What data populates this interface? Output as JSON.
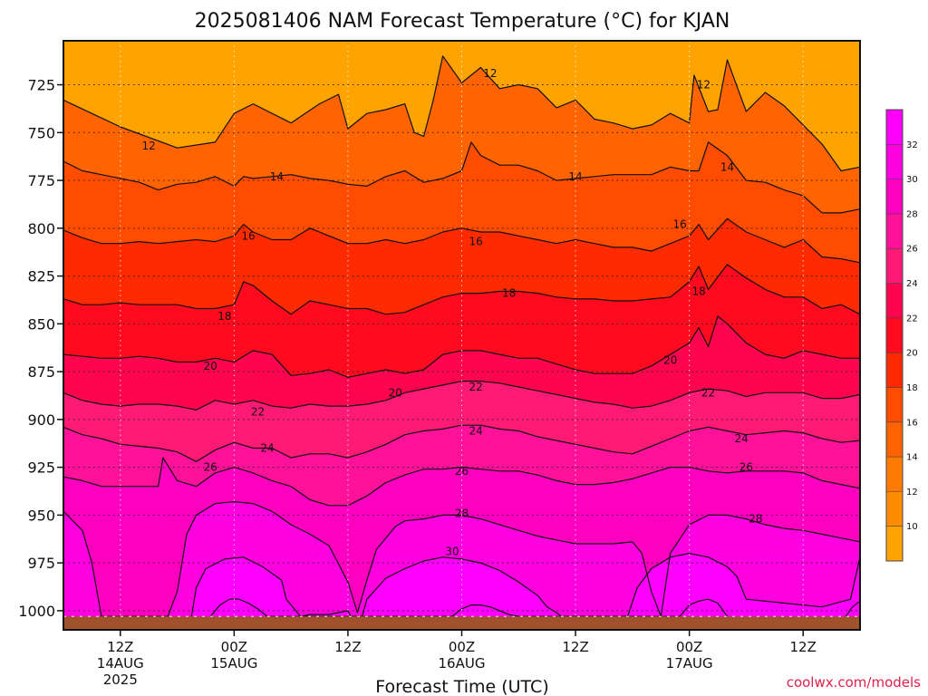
{
  "chart_data": {
    "type": "heatmap",
    "title": "2025081406 NAM Forecast Temperature (°C) for KJAN",
    "xlabel": "Forecast Time (UTC)",
    "ylabel": "",
    "yaxis": {
      "ticks": [
        725,
        750,
        775,
        800,
        825,
        850,
        875,
        900,
        925,
        950,
        975,
        1000
      ],
      "ylim": [
        1010,
        702
      ],
      "inverted": true,
      "grid": "dotted"
    },
    "xaxis": {
      "xlim": [
        0,
        84
      ],
      "ticks": [
        {
          "x": 6,
          "label": "12Z",
          "sub": "14AUG",
          "sub2": "2025"
        },
        {
          "x": 18,
          "label": "00Z",
          "sub": "15AUG",
          "sub2": ""
        },
        {
          "x": 30,
          "label": "12Z",
          "sub": "",
          "sub2": ""
        },
        {
          "x": 42,
          "label": "00Z",
          "sub": "16AUG",
          "sub2": ""
        },
        {
          "x": 54,
          "label": "12Z",
          "sub": "",
          "sub2": ""
        },
        {
          "x": 66,
          "label": "00Z",
          "sub": "17AUG",
          "sub2": ""
        },
        {
          "x": 78,
          "label": "12Z",
          "sub": "",
          "sub2": ""
        }
      ]
    },
    "colorbar": {
      "labels": [
        10,
        12,
        14,
        16,
        18,
        20,
        22,
        24,
        26,
        28,
        30,
        32
      ],
      "colors": [
        "#ffa300",
        "#ff8c00",
        "#ff7a00",
        "#ff6400",
        "#ff4c00",
        "#ff2a00",
        "#ff0a1e",
        "#ff0550",
        "#ff1a75",
        "#ff1299",
        "#ff00c0",
        "#ff00e0",
        "#ff00ff"
      ]
    },
    "contours": [
      {
        "level": 12,
        "x": [
          0,
          6,
          12,
          16,
          18,
          20,
          24,
          27,
          29,
          30,
          32,
          34,
          36,
          37,
          38,
          39,
          40,
          42,
          44,
          46,
          48,
          50,
          52,
          54,
          56,
          58,
          60,
          62,
          64,
          66,
          66.5,
          68,
          69,
          70,
          72,
          74,
          76,
          78,
          80,
          82,
          84
        ],
        "p": [
          733,
          747,
          758,
          755,
          740,
          735,
          745,
          735,
          730,
          748,
          740,
          738,
          735,
          750,
          752,
          733,
          710,
          724,
          716,
          727,
          725,
          727,
          737,
          733,
          743,
          745,
          748,
          746,
          740,
          745,
          720,
          739,
          738,
          712,
          739,
          729,
          736,
          746,
          756,
          770,
          768
        ]
      },
      {
        "level": 14,
        "x": [
          0,
          2,
          4,
          6,
          8,
          10,
          12,
          14,
          16,
          18,
          19,
          20,
          22,
          24,
          26,
          28,
          30,
          32,
          34,
          36,
          38,
          40,
          42,
          43,
          44,
          46,
          48,
          50,
          52,
          54,
          56,
          58,
          60,
          62,
          64,
          66,
          67,
          68,
          70,
          72,
          74,
          76,
          78,
          80,
          82,
          84
        ],
        "p": [
          765,
          770,
          772,
          774,
          776,
          780,
          777,
          776,
          773,
          778,
          773,
          774,
          773,
          772,
          774,
          775,
          777,
          778,
          773,
          770,
          776,
          774,
          770,
          755,
          762,
          767,
          767,
          770,
          775,
          774,
          773,
          772,
          772,
          772,
          768,
          770,
          770,
          755,
          762,
          775,
          776,
          780,
          783,
          792,
          792,
          790
        ]
      },
      {
        "level": 16,
        "x": [
          0,
          2,
          4,
          6,
          8,
          10,
          12,
          14,
          16,
          18,
          19,
          20,
          22,
          24,
          26,
          28,
          30,
          32,
          34,
          36,
          38,
          40,
          42,
          44,
          46,
          48,
          50,
          52,
          54,
          56,
          58,
          60,
          62,
          64,
          66,
          67,
          68,
          70,
          72,
          74,
          76,
          78,
          80,
          82,
          84
        ],
        "p": [
          801,
          805,
          808,
          808,
          807,
          808,
          807,
          806,
          807,
          804,
          798,
          802,
          806,
          806,
          800,
          804,
          808,
          808,
          806,
          808,
          806,
          802,
          800,
          802,
          802,
          804,
          806,
          808,
          806,
          808,
          810,
          810,
          812,
          808,
          804,
          798,
          806,
          795,
          802,
          806,
          810,
          806,
          815,
          816,
          818
        ]
      },
      {
        "level": 18,
        "x": [
          0,
          2,
          4,
          6,
          8,
          10,
          12,
          14,
          16,
          18,
          19,
          20,
          22,
          24,
          26,
          28,
          30,
          32,
          34,
          36,
          38,
          40,
          42,
          44,
          46,
          48,
          50,
          52,
          54,
          56,
          58,
          60,
          62,
          64,
          66,
          67,
          68,
          70,
          72,
          74,
          76,
          78,
          80,
          82,
          84
        ],
        "p": [
          837,
          840,
          840,
          839,
          840,
          840,
          840,
          842,
          842,
          840,
          828,
          830,
          838,
          845,
          838,
          840,
          842,
          842,
          845,
          844,
          840,
          836,
          834,
          834,
          833,
          833,
          834,
          836,
          837,
          837,
          838,
          838,
          837,
          836,
          828,
          820,
          832,
          819,
          826,
          832,
          836,
          836,
          842,
          840,
          845
        ]
      },
      {
        "level": 20,
        "x": [
          0,
          2,
          4,
          6,
          8,
          10,
          12,
          14,
          16,
          18,
          20,
          22,
          24,
          26,
          28,
          30,
          32,
          34,
          36,
          38,
          40,
          42,
          44,
          46,
          48,
          50,
          52,
          54,
          56,
          58,
          60,
          62,
          64,
          66,
          67,
          68,
          69,
          70,
          72,
          74,
          76,
          78,
          80,
          82,
          84
        ],
        "p": [
          866,
          867,
          868,
          868,
          867,
          868,
          870,
          870,
          868,
          870,
          864,
          866,
          877,
          876,
          874,
          878,
          876,
          874,
          876,
          874,
          866,
          864,
          864,
          866,
          868,
          868,
          871,
          874,
          876,
          876,
          876,
          872,
          866,
          860,
          852,
          862,
          846,
          850,
          860,
          866,
          868,
          864,
          866,
          868,
          868
        ]
      },
      {
        "level": 22,
        "x": [
          0,
          2,
          4,
          6,
          8,
          10,
          12,
          14,
          16,
          18,
          20,
          22,
          24,
          26,
          28,
          30,
          32,
          34,
          36,
          38,
          40,
          42,
          44,
          46,
          48,
          50,
          52,
          54,
          56,
          58,
          60,
          62,
          64,
          66,
          68,
          70,
          72,
          74,
          76,
          78,
          80,
          82,
          84
        ],
        "p": [
          886,
          890,
          892,
          893,
          892,
          892,
          893,
          895,
          890,
          892,
          890,
          893,
          894,
          892,
          893,
          893,
          892,
          890,
          886,
          884,
          882,
          880,
          880,
          881,
          883,
          885,
          887,
          889,
          891,
          892,
          894,
          893,
          890,
          886,
          884,
          885,
          888,
          886,
          886,
          886,
          889,
          889,
          887
        ]
      },
      {
        "level": 24,
        "x": [
          0,
          2,
          4,
          6,
          8,
          10,
          12,
          14,
          16,
          18,
          20,
          22,
          24,
          26,
          28,
          30,
          32,
          34,
          36,
          38,
          40,
          42,
          44,
          46,
          48,
          50,
          52,
          54,
          56,
          58,
          60,
          62,
          64,
          66,
          68,
          70,
          72,
          74,
          76,
          78,
          80,
          82,
          84
        ],
        "p": [
          904,
          908,
          910,
          913,
          914,
          915,
          917,
          922,
          916,
          912,
          915,
          915,
          920,
          918,
          918,
          920,
          917,
          913,
          908,
          906,
          905,
          903,
          903,
          905,
          906,
          909,
          911,
          913,
          915,
          917,
          918,
          914,
          910,
          906,
          904,
          906,
          908,
          907,
          906,
          907,
          910,
          912,
          911
        ]
      },
      {
        "level": 26,
        "x": [
          0,
          2,
          4,
          6,
          8,
          10,
          10.5,
          12,
          14,
          16,
          18,
          20,
          22,
          24,
          26,
          28,
          30,
          32,
          34,
          36,
          38,
          40,
          42,
          44,
          46,
          48,
          50,
          52,
          54,
          56,
          58,
          60,
          62,
          64,
          66,
          68,
          70,
          72,
          74,
          76,
          78,
          80,
          82,
          84
        ],
        "p": [
          930,
          932,
          935,
          935,
          935,
          935,
          920,
          932,
          935,
          928,
          925,
          928,
          932,
          935,
          942,
          945,
          945,
          940,
          933,
          929,
          926,
          926,
          925,
          926,
          927,
          927,
          929,
          932,
          934,
          934,
          933,
          931,
          928,
          925,
          925,
          927,
          928,
          927,
          927,
          927,
          928,
          932,
          934,
          936
        ]
      },
      {
        "level": 28,
        "x": [
          0,
          2,
          3,
          4,
          6,
          8,
          10,
          11,
          12,
          13,
          14,
          16,
          18,
          20,
          22,
          24,
          26,
          28,
          30,
          31,
          32,
          33,
          34,
          35,
          36,
          38,
          40,
          42,
          44,
          46,
          48,
          50,
          52,
          54,
          56,
          58,
          60,
          61,
          62,
          63,
          64,
          66,
          68,
          70,
          72,
          74,
          76,
          78,
          80,
          82,
          84
        ],
        "p": [
          948,
          958,
          975,
          1003,
          1003,
          1003,
          1003,
          1003,
          990,
          960,
          950,
          944,
          943,
          944,
          948,
          955,
          960,
          966,
          985,
          1001,
          984,
          968,
          962,
          956,
          953,
          952,
          950,
          950,
          952,
          955,
          958,
          961,
          963,
          965,
          965,
          965,
          964,
          970,
          990,
          1003,
          970,
          955,
          950,
          950,
          952,
          955,
          957,
          958,
          960,
          962,
          964
        ]
      },
      {
        "level": 30,
        "x": [
          13.5,
          14,
          15,
          17,
          19,
          21,
          23,
          23.5,
          25,
          26,
          28,
          29,
          30,
          30.3,
          31.5,
          32,
          34,
          36,
          38,
          40,
          42,
          44,
          46,
          48,
          50,
          51,
          52,
          52.5,
          59.5,
          60.5,
          62,
          64,
          66,
          68,
          70,
          71,
          72,
          76,
          80,
          83,
          84
        ],
        "p": [
          1003,
          988,
          978,
          973,
          972,
          977,
          984,
          994,
          1003,
          1002,
          1002,
          1001,
          1000,
          1003,
          1003,
          994,
          983,
          978,
          974,
          972,
          973,
          975,
          979,
          985,
          992,
          998,
          1001,
          1003,
          1003,
          988,
          978,
          972,
          970,
          972,
          977,
          982,
          994,
          996,
          998,
          994,
          972
        ]
      },
      {
        "level": 32,
        "x": [
          15.5,
          16.5,
          17.5,
          18.5,
          19.5,
          20.5,
          21.5,
          41,
          42,
          43,
          44,
          45,
          46,
          47,
          48,
          65,
          66,
          67,
          68,
          69,
          70
        ],
        "p": [
          1003,
          997,
          994,
          994,
          996,
          999,
          1003,
          1003,
          999,
          997,
          997,
          998,
          1000,
          1002,
          1003,
          1003,
          997,
          995,
          994,
          996,
          1003
        ]
      },
      {
        "level": 32,
        "x": [
          82.5,
          83.2,
          84
        ],
        "p": [
          1003,
          998,
          995
        ]
      }
    ],
    "contour_labels": [
      {
        "level": 12,
        "x": 9,
        "p": 757
      },
      {
        "level": 12,
        "x": 45,
        "p": 719
      },
      {
        "level": 12,
        "x": 67.5,
        "p": 725
      },
      {
        "level": 14,
        "x": 22.5,
        "p": 773
      },
      {
        "level": 14,
        "x": 54,
        "p": 773
      },
      {
        "level": 14,
        "x": 70,
        "p": 768
      },
      {
        "level": 16,
        "x": 19.5,
        "p": 804
      },
      {
        "level": 16,
        "x": 43.5,
        "p": 807
      },
      {
        "level": 16,
        "x": 65,
        "p": 798
      },
      {
        "level": 18,
        "x": 17,
        "p": 846
      },
      {
        "level": 18,
        "x": 47,
        "p": 834
      },
      {
        "level": 18,
        "x": 67,
        "p": 833
      },
      {
        "level": 20,
        "x": 15.5,
        "p": 872
      },
      {
        "level": 20,
        "x": 35,
        "p": 886
      },
      {
        "level": 20,
        "x": 64,
        "p": 869
      },
      {
        "level": 22,
        "x": 20.5,
        "p": 896
      },
      {
        "level": 22,
        "x": 43.5,
        "p": 883
      },
      {
        "level": 22,
        "x": 68,
        "p": 886
      },
      {
        "level": 24,
        "x": 21.5,
        "p": 915
      },
      {
        "level": 24,
        "x": 43.5,
        "p": 906
      },
      {
        "level": 24,
        "x": 71.5,
        "p": 910
      },
      {
        "level": 26,
        "x": 15.5,
        "p": 925
      },
      {
        "level": 26,
        "x": 42,
        "p": 927
      },
      {
        "level": 26,
        "x": 72,
        "p": 925
      },
      {
        "level": 28,
        "x": 42,
        "p": 949
      },
      {
        "level": 28,
        "x": 73,
        "p": 952
      },
      {
        "level": 30,
        "x": 41,
        "p": 969
      }
    ],
    "ground": {
      "top": 1003,
      "color": "#a0522d"
    }
  },
  "credit": "coolwx.com/models"
}
